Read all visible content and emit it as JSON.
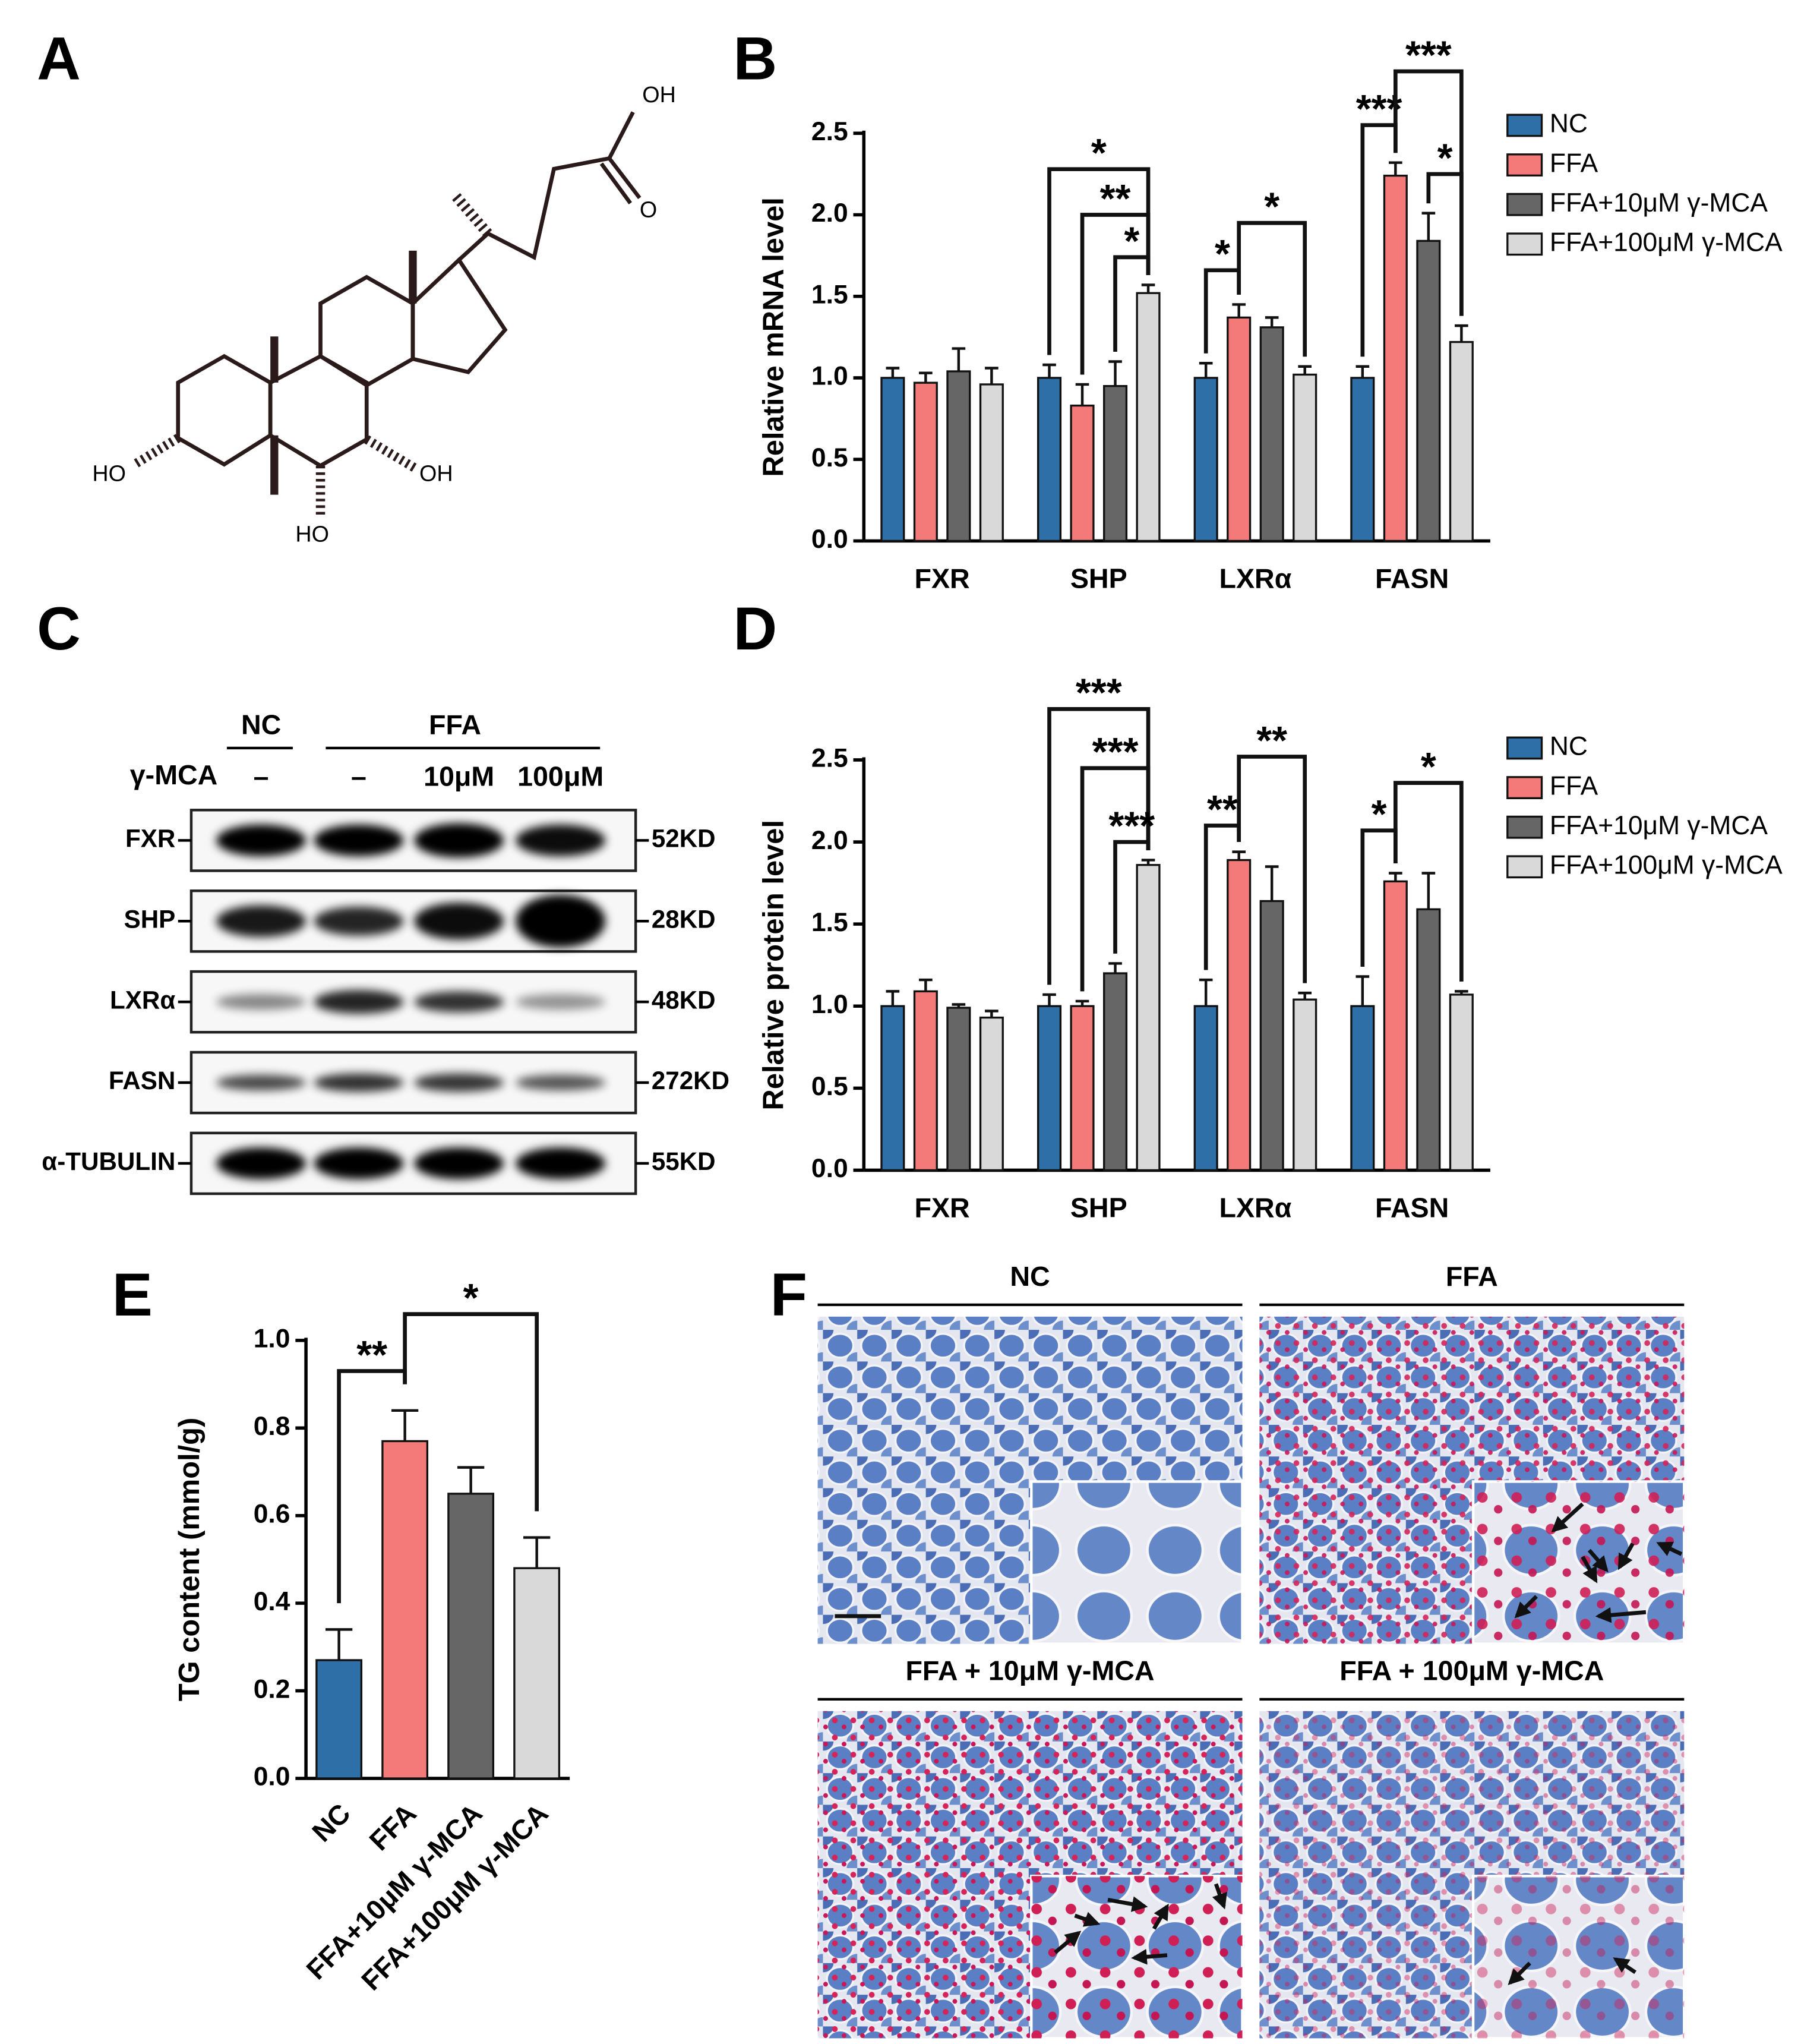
{
  "panel_labels": [
    "A",
    "B",
    "C",
    "D",
    "E",
    "F"
  ],
  "structure": {
    "labels": [
      "OH",
      "O",
      "HO",
      "OH",
      "HO"
    ]
  },
  "chart_data": [
    {
      "type": "bar",
      "y_label": "Relative mRNA level",
      "categories": [
        "FXR",
        "SHP",
        "LXRα",
        "FASN"
      ],
      "series": [
        {
          "name": "NC",
          "color": "#2e6fa7",
          "values": [
            1.0,
            1.0,
            1.0,
            1.0
          ],
          "errors": [
            0.06,
            0.08,
            0.09,
            0.07
          ]
        },
        {
          "name": "FFA",
          "color": "#f47a7a",
          "values": [
            0.97,
            0.83,
            1.37,
            2.24
          ],
          "errors": [
            0.06,
            0.13,
            0.08,
            0.08
          ]
        },
        {
          "name": "FFA+10μM γ-MCA",
          "color": "#666666",
          "values": [
            1.04,
            0.95,
            1.31,
            1.84
          ],
          "errors": [
            0.14,
            0.15,
            0.06,
            0.17
          ]
        },
        {
          "name": "FFA+100μM γ-MCA",
          "color": "#d9d9d9",
          "values": [
            0.96,
            1.52,
            1.02,
            1.22
          ],
          "errors": [
            0.1,
            0.05,
            0.05,
            0.1
          ]
        }
      ],
      "ylim": [
        0,
        2.5
      ],
      "yticks": [
        {
          "value": 0,
          "label": "0.0"
        },
        0.5,
        {
          "value": 1,
          "label": "1.0"
        },
        1.5,
        {
          "value": 2,
          "label": "2.0"
        },
        2.5
      ],
      "annotations": [
        "*",
        "**",
        "*",
        "*",
        "*",
        "***",
        "***",
        "*"
      ]
    },
    {
      "type": "bar",
      "y_label": "Relative protein level",
      "categories": [
        "FXR",
        "SHP",
        "LXRα",
        "FASN"
      ],
      "series": [
        {
          "name": "NC",
          "color": "#2e6fa7",
          "values": [
            1.0,
            1.0,
            1.0,
            1.0
          ],
          "errors": [
            0.09,
            0.07,
            0.16,
            0.18
          ]
        },
        {
          "name": "FFA",
          "color": "#f47a7a",
          "values": [
            1.09,
            1.0,
            1.89,
            1.76
          ],
          "errors": [
            0.07,
            0.03,
            0.05,
            0.05
          ]
        },
        {
          "name": "FFA+10μM γ-MCA",
          "color": "#666666",
          "values": [
            0.99,
            1.2,
            1.64,
            1.59
          ],
          "errors": [
            0.02,
            0.06,
            0.21,
            0.22
          ]
        },
        {
          "name": "FFA+100μM γ-MCA",
          "color": "#d9d9d9",
          "values": [
            0.93,
            1.86,
            1.04,
            1.07
          ],
          "errors": [
            0.04,
            0.03,
            0.04,
            0.02
          ]
        }
      ],
      "ylim": [
        0,
        2.5
      ],
      "yticks": [
        {
          "value": 0,
          "label": "0.0"
        },
        0.5,
        {
          "value": 1,
          "label": "1.0"
        },
        1.5,
        {
          "value": 2,
          "label": "2.0"
        },
        2.5
      ],
      "annotations": [
        "***",
        "***",
        "***",
        "**",
        "**",
        "*",
        "*"
      ]
    },
    {
      "type": "bar",
      "y_label": "TG content (mmol/g)",
      "categories": [
        "NC",
        "FFA",
        "FFA+10μM γ-MCA",
        "FFA+100μM γ-MCA"
      ],
      "values": [
        0.27,
        0.77,
        0.65,
        0.48
      ],
      "errors": [
        0.07,
        0.07,
        0.06,
        0.07
      ],
      "colors": [
        "#2e6fa7",
        "#f47a7a",
        "#666666",
        "#d9d9d9"
      ],
      "ylim": [
        0,
        1
      ],
      "yticks": [
        {
          "value": 0,
          "label": "0.0"
        },
        0.2,
        0.4,
        0.6,
        0.8,
        {
          "value": 1,
          "label": "1.0"
        }
      ],
      "annotations": [
        "**",
        "*"
      ]
    }
  ],
  "blot": {
    "groups": [
      "NC",
      "FFA"
    ],
    "treatment_label": "γ-MCA",
    "treatments": [
      "–",
      "–",
      "10μM",
      "100μM"
    ],
    "rows": [
      {
        "protein": "FXR",
        "size": "52KD"
      },
      {
        "protein": "SHP",
        "size": "28KD"
      },
      {
        "protein": "LXRα",
        "size": "48KD"
      },
      {
        "protein": "FASN",
        "size": "272KD"
      },
      {
        "protein": "α-TUBULIN",
        "size": "55KD"
      }
    ]
  },
  "staining": {
    "panels": [
      "NC",
      "FFA",
      "FFA + 10μM γ-MCA",
      "FFA + 100μM γ-MCA"
    ]
  }
}
